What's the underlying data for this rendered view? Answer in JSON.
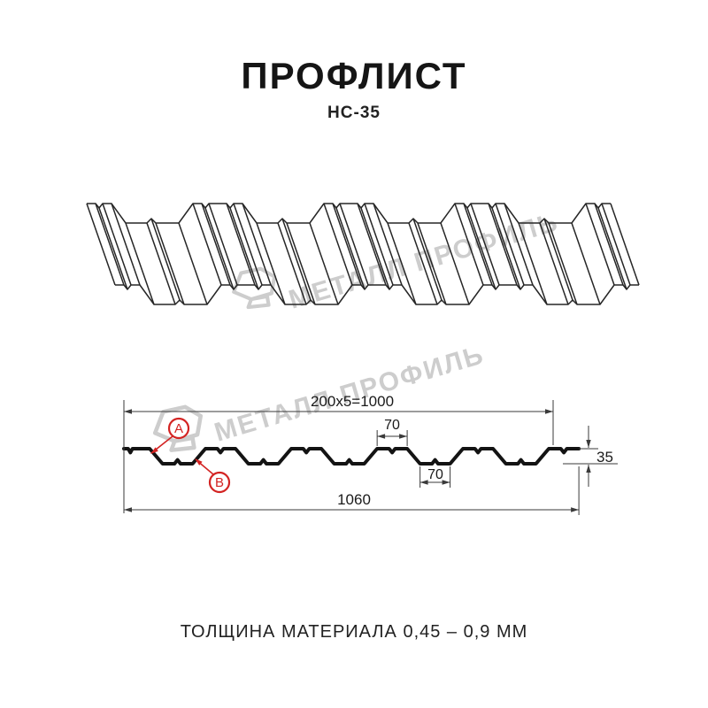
{
  "header": {
    "title": "ПРОФЛИСТ",
    "subtitle": "НС-35"
  },
  "watermark": {
    "text": "МЕТАЛЛ ПРОФИЛЬ",
    "color": "#cdcdcd",
    "logo_icon": "metal-profil-logo"
  },
  "drawing_3d": {
    "content": "profiled-sheet-perspective-wireframe",
    "line_color": "#262626"
  },
  "section": {
    "profile_color": "#131313",
    "dim_color": "#3a3a3a",
    "callout_color": "#d32322",
    "dimensions": {
      "pitch_total": "200x5=1000",
      "crest_width": "70",
      "trough_width": "70",
      "height": "35",
      "overall_width": "1060"
    },
    "callouts": [
      {
        "label": "A"
      },
      {
        "label": "B"
      }
    ]
  },
  "footer": {
    "thickness_label": "ТОЛЩИНА МАТЕРИАЛА 0,45 – 0,9 ММ"
  }
}
